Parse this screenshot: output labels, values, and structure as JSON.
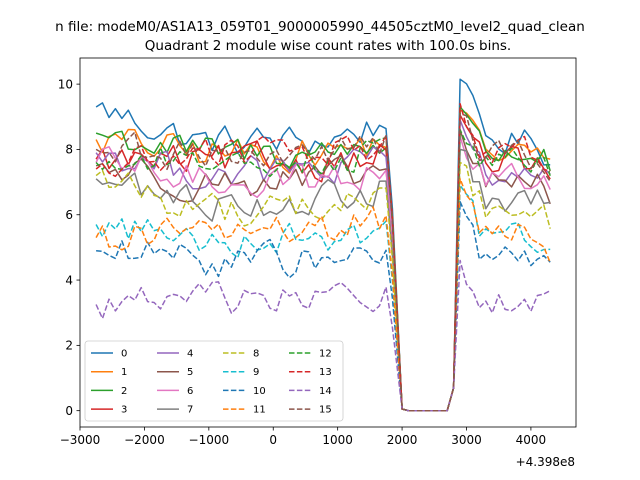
{
  "figure": {
    "suptitle": "n file: modeM0/AS1A13_059T01_9000005990_44505cztM0_level2_quad_clean"
  },
  "chart_data": {
    "type": "line",
    "title": "Quadrant 2 module wise count rates with 100.0s bins.",
    "xlabel": "",
    "ylabel": "",
    "x_offset_label": "+4.398e8",
    "xlim": [
      -3000,
      4700
    ],
    "ylim": [
      -0.5,
      10.8
    ],
    "xticks": [
      -3000,
      -2000,
      -1000,
      0,
      1000,
      2000,
      3000,
      4000
    ],
    "xtick_labels": [
      "−3000",
      "−2000",
      "−1000",
      "0",
      "1000",
      "2000",
      "3000",
      "4000"
    ],
    "yticks": [
      0,
      2,
      4,
      6,
      8,
      10
    ],
    "ytick_labels": [
      "0",
      "2",
      "4",
      "6",
      "8",
      "10"
    ],
    "grid": false,
    "legend_position": "lower-left",
    "legend_columns": 4,
    "series": [
      {
        "name": "0",
        "color": "#1f77b4",
        "dash": "solid",
        "base": 8.25,
        "start": 9.3,
        "peak_before": 10.3,
        "peak_after": 10.15,
        "end": 6.5
      },
      {
        "name": "1",
        "color": "#ff7f0e",
        "dash": "solid",
        "base": 7.9,
        "start": 8.3,
        "peak_before": 9.0,
        "peak_after": 9.2,
        "end": 6.3
      },
      {
        "name": "2",
        "color": "#2ca02c",
        "dash": "solid",
        "base": 7.9,
        "start": 8.5,
        "peak_before": 9.25,
        "peak_after": 9.3,
        "end": 6.6
      },
      {
        "name": "3",
        "color": "#d62728",
        "dash": "solid",
        "base": 7.6,
        "start": 7.7,
        "peak_before": 8.8,
        "peak_after": 9.05,
        "end": 6.0
      },
      {
        "name": "4",
        "color": "#9467bd",
        "dash": "solid",
        "base": 7.3,
        "start": 7.9,
        "peak_before": 8.5,
        "peak_after": 8.9,
        "end": 6.0
      },
      {
        "name": "5",
        "color": "#8c564b",
        "dash": "solid",
        "base": 7.0,
        "start": 7.5,
        "peak_before": 8.3,
        "peak_after": 8.6,
        "end": 5.8
      },
      {
        "name": "6",
        "color": "#e377c2",
        "dash": "solid",
        "base": 7.1,
        "start": 7.6,
        "peak_before": 8.2,
        "peak_after": 8.4,
        "end": 5.9
      },
      {
        "name": "7",
        "color": "#7f7f7f",
        "dash": "solid",
        "base": 6.4,
        "start": 7.1,
        "peak_before": 8.0,
        "peak_after": 8.0,
        "end": 5.6
      },
      {
        "name": "8",
        "color": "#bcbd22",
        "dash": "dashed",
        "base": 6.2,
        "start": 7.2,
        "peak_before": 7.5,
        "peak_after": 7.6,
        "end": 5.0
      },
      {
        "name": "9",
        "color": "#17becf",
        "dash": "dashed",
        "base": 5.3,
        "start": 5.7,
        "peak_before": 6.5,
        "peak_after": 6.9,
        "end": 4.8
      },
      {
        "name": "10",
        "color": "#1f77b4",
        "dash": "dashed",
        "base": 4.6,
        "start": 4.9,
        "peak_before": 5.3,
        "peak_after": 6.4,
        "end": 3.6
      },
      {
        "name": "11",
        "color": "#ff7f0e",
        "dash": "dashed",
        "base": 5.5,
        "start": 5.3,
        "peak_before": 6.6,
        "peak_after": 7.1,
        "end": 4.1
      },
      {
        "name": "12",
        "color": "#2ca02c",
        "dash": "dashed",
        "base": 7.7,
        "start": 7.6,
        "peak_before": 8.4,
        "peak_after": 8.6,
        "end": 6.3
      },
      {
        "name": "13",
        "color": "#d62728",
        "dash": "dashed",
        "base": 7.9,
        "start": 7.4,
        "peak_before": 8.6,
        "peak_after": 9.4,
        "end": 6.2
      },
      {
        "name": "14",
        "color": "#9467bd",
        "dash": "dashed",
        "base": 3.4,
        "start": 3.25,
        "peak_before": 3.9,
        "peak_after": 4.6,
        "end": 2.8
      },
      {
        "name": "15",
        "color": "#8c564b",
        "dash": "dashed",
        "base": 7.8,
        "start": 8.0,
        "peak_before": 8.9,
        "peak_after": 9.1,
        "end": 6.4
      }
    ],
    "time_profile": {
      "x_start": -2750,
      "x_step": 100,
      "x_last_before_gap": 1900,
      "x_zero_from": 2000,
      "x_zero_to": 2700,
      "x_first_after_gap": 2900,
      "x_end": 4350
    }
  }
}
